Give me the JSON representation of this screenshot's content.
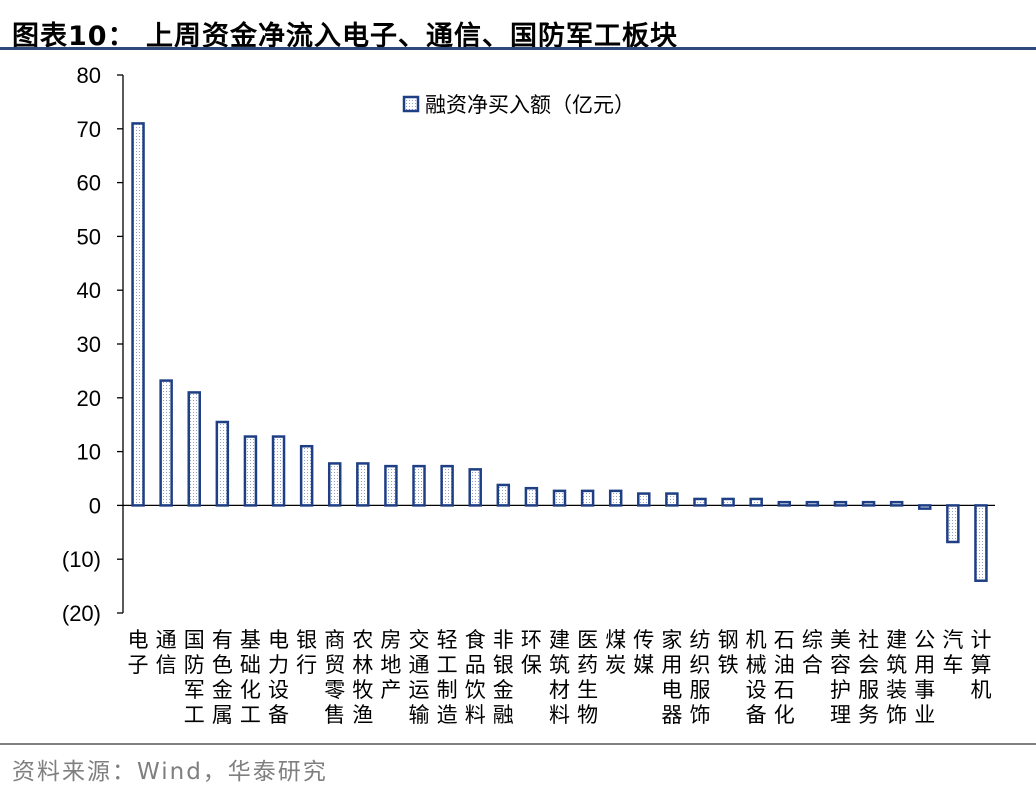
{
  "header": {
    "title": "图表10：  上周资金净流入电子、通信、国防军工板块"
  },
  "footer": {
    "source": "资料来源：Wind，华泰研究"
  },
  "chart_data": {
    "type": "bar",
    "title": "上周资金净流入电子、通信、国防军工板块",
    "xlabel": "",
    "ylabel": "",
    "ylim": [
      -20,
      80
    ],
    "yticks": [
      80,
      70,
      60,
      50,
      40,
      30,
      20,
      10,
      0,
      -10,
      -20
    ],
    "ytick_labels": [
      "80",
      "70",
      "60",
      "50",
      "40",
      "30",
      "20",
      "10",
      "0",
      "(10)",
      "(20)"
    ],
    "legend": {
      "label": "融资净买入额（亿元）",
      "position": "top-center"
    },
    "grid": false,
    "bar_color": "#1f3f85",
    "categories": [
      "电子",
      "通信",
      "国防军工",
      "有色金属",
      "基础化工",
      "电力设备",
      "银行",
      "商贸零售",
      "农林牧渔",
      "房地产",
      "交通运输",
      "轻工制造",
      "食品饮料",
      "非银金融",
      "环保",
      "建筑材料",
      "医药生物",
      "煤炭",
      "传媒",
      "家用电器",
      "纺织服饰",
      "钢铁",
      "机械设备",
      "石油石化",
      "综合",
      "美容护理",
      "社会服务",
      "建筑装饰",
      "公用事业",
      "汽车",
      "计算机"
    ],
    "values": [
      71.0,
      23.2,
      21.0,
      15.5,
      12.8,
      12.8,
      11.0,
      7.8,
      7.8,
      7.3,
      7.3,
      7.3,
      6.7,
      3.8,
      3.2,
      2.7,
      2.7,
      2.7,
      2.2,
      2.2,
      1.2,
      1.2,
      1.2,
      0.6,
      0.6,
      0.6,
      0.6,
      0.6,
      -0.6,
      -6.8,
      -14.0
    ]
  }
}
